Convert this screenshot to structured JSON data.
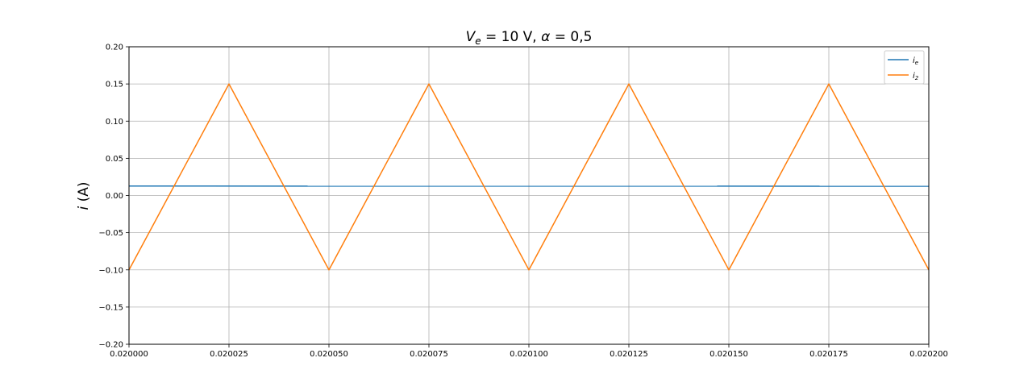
{
  "chart_data": {
    "type": "line",
    "title": {
      "v_symbol": "V",
      "v_sub": "e",
      "v_rest": " = 10 V,  ",
      "alpha_symbol": "α",
      "alpha_rest": " = 0,5"
    },
    "ylabel": {
      "symbol": "i",
      "unit": " (A)"
    },
    "xlabel": "",
    "xlim": [
      0.02,
      0.0202
    ],
    "ylim": [
      -0.2,
      0.2
    ],
    "xticks": [
      0.02,
      0.020025,
      0.02005,
      0.020075,
      0.0201,
      0.020125,
      0.02015,
      0.020175,
      0.0202
    ],
    "xtick_labels": [
      "0.020000",
      "0.020025",
      "0.020050",
      "0.020075",
      "0.020100",
      "0.020125",
      "0.020150",
      "0.020175",
      "0.020200"
    ],
    "yticks": [
      -0.2,
      -0.15,
      -0.1,
      -0.05,
      0.0,
      0.05,
      0.1,
      0.15,
      0.2
    ],
    "ytick_labels": [
      "−0.20",
      "−0.15",
      "−0.10",
      "−0.05",
      "0.00",
      "0.05",
      "0.10",
      "0.15",
      "0.20"
    ],
    "grid": true,
    "legend_position": "top-right",
    "series": [
      {
        "name": "i_e",
        "label_main": "i",
        "label_sub": "e",
        "color": "#1f77b4",
        "x": [
          0.02,
          0.0202
        ],
        "y": [
          0.0127,
          0.0125
        ]
      },
      {
        "name": "i_2",
        "label_main": "i",
        "label_sub": "2",
        "color": "#ff7f0e",
        "x": [
          0.02,
          0.020025,
          0.02005,
          0.020075,
          0.0201,
          0.020125,
          0.02015,
          0.020175,
          0.0202
        ],
        "y": [
          -0.1,
          0.15,
          -0.1,
          0.15,
          -0.1,
          0.15,
          -0.1,
          0.15,
          -0.1
        ]
      }
    ]
  }
}
